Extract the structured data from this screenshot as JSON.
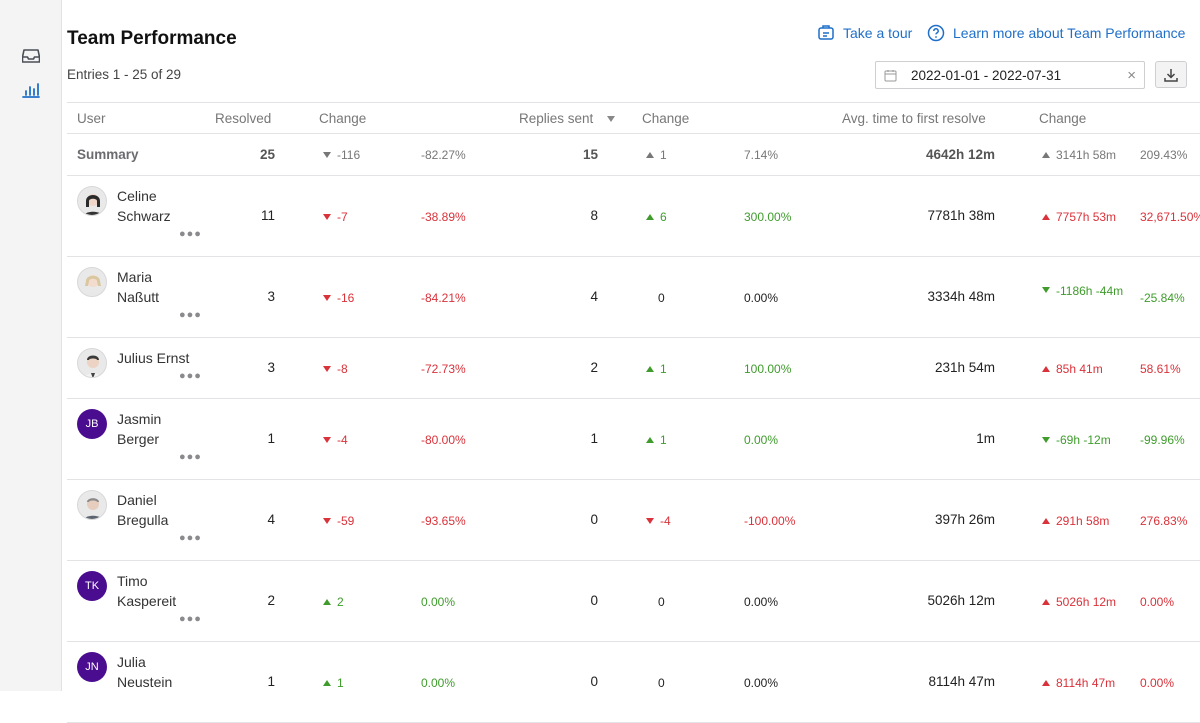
{
  "page": {
    "title": "Team Performance",
    "entries": "Entries 1 - 25 of 29",
    "tour_link": "Take a tour",
    "learn_link": "Learn more about Team Performance",
    "date_range": "2022-01-01 - 2022-07-31",
    "clear_symbol": "×"
  },
  "sidebar": {
    "icons": [
      "inbox-icon",
      "bar-chart-icon"
    ],
    "active": "bar-chart-icon"
  },
  "colors": {
    "accent": "#1f6fc9",
    "negative": "#d9323a",
    "positive": "#3f9c2c",
    "avatar_bg": "#4b0d90"
  },
  "columns": {
    "user": "User",
    "resolved": "Resolved",
    "change1": "Change",
    "replies": "Replies sent",
    "change2": "Change",
    "avg": "Avg. time to first resolve",
    "change3": "Change"
  },
  "summary": {
    "label": "Summary",
    "resolved": "25",
    "res_change": "-116",
    "res_pct": "-82.27%",
    "replies": "15",
    "rep_change": "1",
    "rep_pct": "7.14%",
    "avg": "4642h 12m",
    "avg_change": "3141h 58m",
    "avg_pct": "209.43%"
  },
  "rows": [
    {
      "first": "Celine",
      "last": "Schwarz",
      "avatar": "photo",
      "initials": "",
      "resolved": "11",
      "res_change": "-7",
      "res_pct": "-38.89%",
      "replies": "8",
      "rep_change": "6",
      "rep_pct": "300.00%",
      "avg": "7781h 38m",
      "avg_change": "7757h 53m",
      "avg_pct": "32,671.50%"
    },
    {
      "first": "Maria",
      "last": "Naßutt",
      "avatar": "photo",
      "initials": "",
      "resolved": "3",
      "res_change": "-16",
      "res_pct": "-84.21%",
      "replies": "4",
      "rep_change": "0",
      "rep_pct": "0.00%",
      "avg": "3334h 48m",
      "avg_change": "-1186h -44m",
      "avg_pct": "-25.84%"
    },
    {
      "first": "Julius Ernst",
      "last": "",
      "avatar": "photo",
      "initials": "",
      "resolved": "3",
      "res_change": "-8",
      "res_pct": "-72.73%",
      "replies": "2",
      "rep_change": "1",
      "rep_pct": "100.00%",
      "avg": "231h 54m",
      "avg_change": "85h 41m",
      "avg_pct": "58.61%"
    },
    {
      "first": "Jasmin",
      "last": "Berger",
      "avatar": "initials",
      "initials": "JB",
      "resolved": "1",
      "res_change": "-4",
      "res_pct": "-80.00%",
      "replies": "1",
      "rep_change": "1",
      "rep_pct": "0.00%",
      "avg": "1m",
      "avg_change": "-69h -12m",
      "avg_pct": "-99.96%"
    },
    {
      "first": "Daniel",
      "last": "Bregulla",
      "avatar": "photo",
      "initials": "",
      "resolved": "4",
      "res_change": "-59",
      "res_pct": "-93.65%",
      "replies": "0",
      "rep_change": "-4",
      "rep_pct": "-100.00%",
      "avg": "397h 26m",
      "avg_change": "291h 58m",
      "avg_pct": "276.83%"
    },
    {
      "first": "Timo",
      "last": "Kaspereit",
      "avatar": "initials",
      "initials": "TK",
      "resolved": "2",
      "res_change": "2",
      "res_pct": "0.00%",
      "replies": "0",
      "rep_change": "0",
      "rep_pct": "0.00%",
      "avg": "5026h 12m",
      "avg_change": "5026h 12m",
      "avg_pct": "0.00%"
    },
    {
      "first": "Julia",
      "last": "Neustein",
      "avatar": "initials",
      "initials": "JN",
      "resolved": "1",
      "res_change": "1",
      "res_pct": "0.00%",
      "replies": "0",
      "rep_change": "0",
      "rep_pct": "0.00%",
      "avg": "8114h 47m",
      "avg_change": "8114h 47m",
      "avg_pct": "0.00%"
    }
  ]
}
